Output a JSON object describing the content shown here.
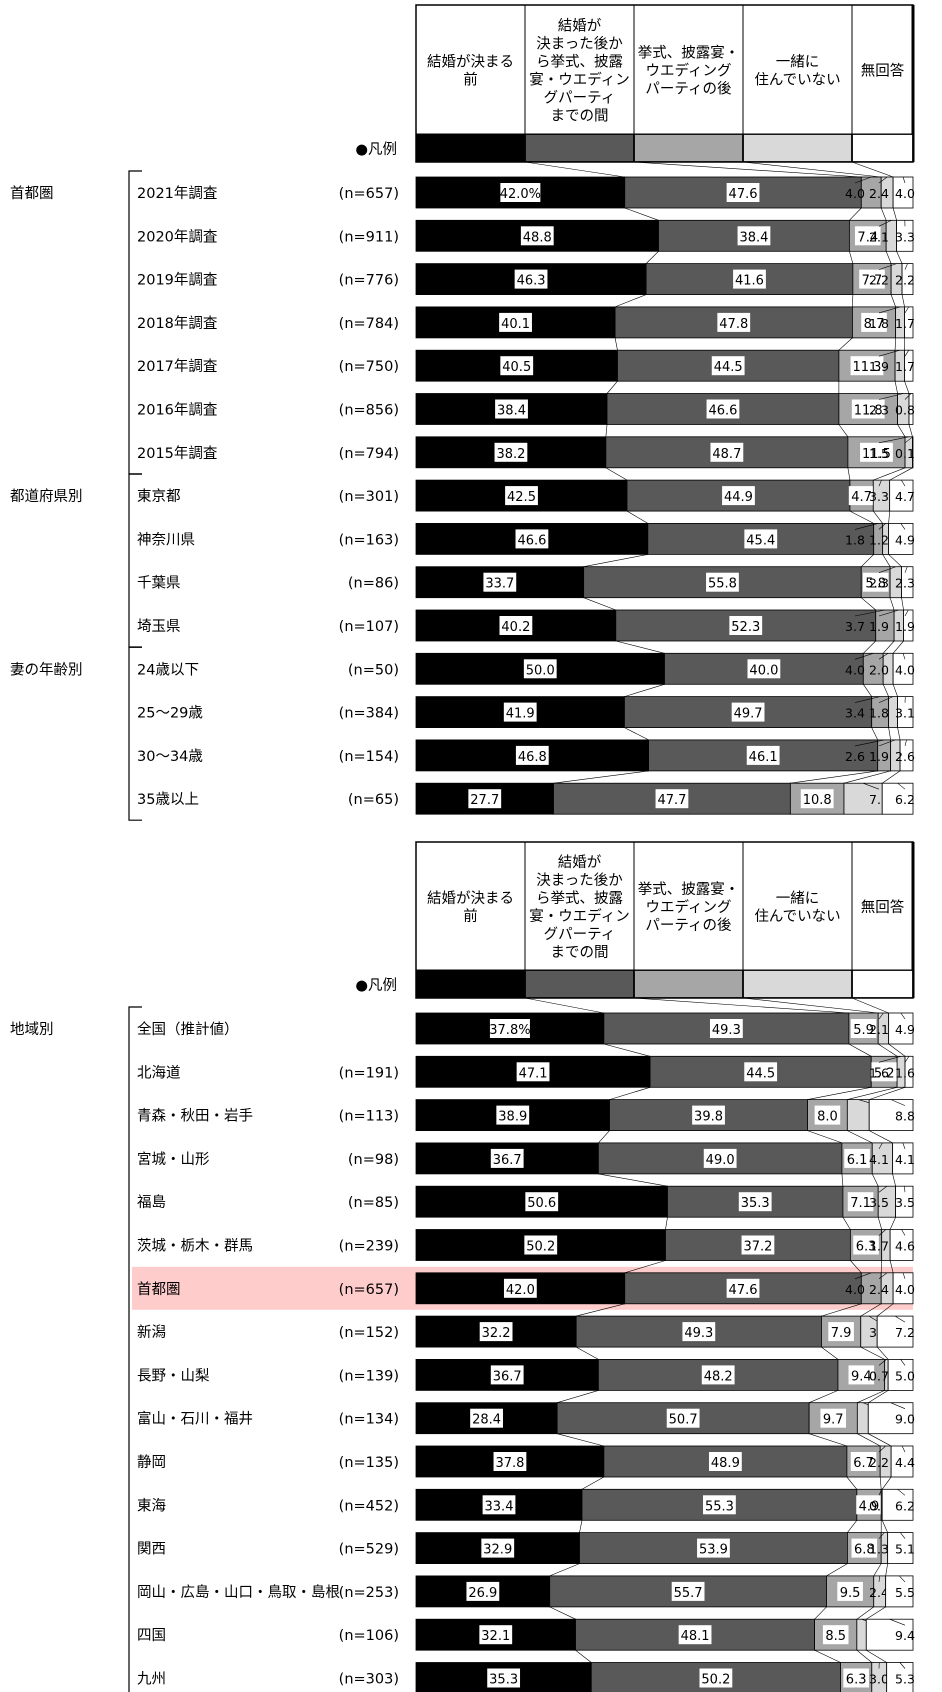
{
  "legend_label": "●凡例",
  "unit": "%",
  "colors": {
    "before": "#000000",
    "between": "#595959",
    "after": "#a6a6a6",
    "not_living": "#d9d9d9",
    "no_answer": "#ffffff",
    "highlight": "#ffcccc"
  },
  "chart_data": [
    {
      "type": "bar",
      "orientation": "horizontal",
      "stacked": true,
      "normalized": true,
      "series": [
        {
          "name": "結婚が決まる前"
        },
        {
          "name": "結婚が決まった後から挙式、披露宴・ウエディングパーティまでの間"
        },
        {
          "name": "挙式、披露宴・ウエディングパーティの後"
        },
        {
          "name": "一緒に住んでいない"
        },
        {
          "name": "無回答"
        }
      ],
      "groups": [
        {
          "label": "首都圏",
          "rows": [
            {
              "label": "2021年調査",
              "n": "(n=657)",
              "values": [
                42.0,
                47.6,
                4.0,
                2.4,
                4.0
              ]
            },
            {
              "label": "2020年調査",
              "n": "(n=911)",
              "values": [
                48.8,
                38.4,
                7.4,
                2.1,
                3.3
              ]
            },
            {
              "label": "2019年調査",
              "n": "(n=776)",
              "values": [
                46.3,
                41.6,
                7.7,
                2.2,
                2.2
              ]
            },
            {
              "label": "2018年調査",
              "n": "(n=784)",
              "values": [
                40.1,
                47.8,
                8.7,
                1.8,
                1.7
              ]
            },
            {
              "label": "2017年調査",
              "n": "(n=750)",
              "values": [
                40.5,
                44.5,
                11.3,
                1.9,
                1.7
              ]
            },
            {
              "label": "2016年調査",
              "n": "(n=856)",
              "values": [
                38.4,
                46.6,
                11.8,
                2.3,
                0.8
              ]
            },
            {
              "label": "2015年調査",
              "n": "(n=794)",
              "values": [
                38.2,
                48.7,
                11.5,
                1.5,
                0.1
              ]
            }
          ]
        },
        {
          "label": "都道府県別",
          "rows": [
            {
              "label": "東京都",
              "n": "(n=301)",
              "values": [
                42.5,
                44.9,
                4.7,
                3.3,
                4.7
              ]
            },
            {
              "label": "神奈川県",
              "n": "(n=163)",
              "values": [
                46.6,
                45.4,
                1.8,
                1.2,
                4.9
              ]
            },
            {
              "label": "千葉県",
              "n": "(n=86)",
              "values": [
                33.7,
                55.8,
                5.8,
                2.3,
                2.3
              ]
            },
            {
              "label": "埼玉県",
              "n": "(n=107)",
              "values": [
                40.2,
                52.3,
                3.7,
                1.9,
                1.9
              ]
            }
          ]
        },
        {
          "label": "妻の年齢別",
          "rows": [
            {
              "label": "24歳以下",
              "n": "(n=50)",
              "values": [
                50.0,
                40.0,
                4.0,
                2.0,
                4.0
              ]
            },
            {
              "label": "25～29歳",
              "n": "(n=384)",
              "values": [
                41.9,
                49.7,
                3.4,
                1.8,
                3.1
              ]
            },
            {
              "label": "30～34歳",
              "n": "(n=154)",
              "values": [
                46.8,
                46.1,
                2.6,
                1.9,
                2.6
              ]
            },
            {
              "label": "35歳以上",
              "n": "(n=65)",
              "values": [
                27.7,
                47.7,
                10.8,
                7.7,
                6.2
              ]
            }
          ]
        }
      ]
    },
    {
      "type": "bar",
      "orientation": "horizontal",
      "stacked": true,
      "normalized": true,
      "series": [
        {
          "name": "結婚が決まる前"
        },
        {
          "name": "結婚が決まった後から挙式、披露宴・ウエディングパーティまでの間"
        },
        {
          "name": "挙式、披露宴・ウエディングパーティの後"
        },
        {
          "name": "一緒に住んでいない"
        },
        {
          "name": "無回答"
        }
      ],
      "groups": [
        {
          "label": "地域別",
          "rows": [
            {
              "label": "全国（推計値）",
              "n": "",
              "values": [
                37.8,
                49.3,
                5.9,
                2.1,
                4.9
              ]
            },
            {
              "label": "北海道",
              "n": "(n=191)",
              "values": [
                47.1,
                44.5,
                5.2,
                1.6,
                1.6
              ]
            },
            {
              "label": "青森・秋田・岩手",
              "n": "(n=113)",
              "values": [
                38.9,
                39.8,
                8.0,
                4.4,
                8.8
              ]
            },
            {
              "label": "宮城・山形",
              "n": "(n=98)",
              "values": [
                36.7,
                49.0,
                6.1,
                4.1,
                4.1
              ]
            },
            {
              "label": "福島",
              "n": "(n=85)",
              "values": [
                50.6,
                35.3,
                7.1,
                3.5,
                3.5
              ]
            },
            {
              "label": "茨城・栃木・群馬",
              "n": "(n=239)",
              "values": [
                50.2,
                37.2,
                6.3,
                1.7,
                4.6
              ]
            },
            {
              "label": "首都圏",
              "n": "(n=657)",
              "values": [
                42.0,
                47.6,
                4.0,
                2.4,
                4.0
              ],
              "highlight": true
            },
            {
              "label": "新潟",
              "n": "(n=152)",
              "values": [
                32.2,
                49.3,
                7.9,
                3.3,
                7.2
              ]
            },
            {
              "label": "長野・山梨",
              "n": "(n=139)",
              "values": [
                36.7,
                48.2,
                9.4,
                0.7,
                5.0
              ]
            },
            {
              "label": "富山・石川・福井",
              "n": "(n=134)",
              "values": [
                28.4,
                50.7,
                9.7,
                2.2,
                9.0
              ]
            },
            {
              "label": "静岡",
              "n": "(n=135)",
              "values": [
                37.8,
                48.9,
                6.7,
                2.2,
                4.4
              ]
            },
            {
              "label": "東海",
              "n": "(n=452)",
              "values": [
                33.4,
                55.3,
                4.9,
                0.2,
                6.2
              ]
            },
            {
              "label": "関西",
              "n": "(n=529)",
              "values": [
                32.9,
                53.9,
                6.8,
                1.3,
                5.1
              ]
            },
            {
              "label": "岡山・広島・山口・鳥取・島根",
              "n": "(n=253)",
              "values": [
                26.9,
                55.7,
                9.5,
                2.4,
                5.5
              ]
            },
            {
              "label": "四国",
              "n": "(n=106)",
              "values": [
                32.1,
                48.1,
                8.5,
                1.9,
                9.4
              ]
            },
            {
              "label": "九州",
              "n": "(n=303)",
              "values": [
                35.3,
                50.2,
                6.3,
                3.0,
                5.3
              ]
            }
          ]
        }
      ]
    }
  ]
}
